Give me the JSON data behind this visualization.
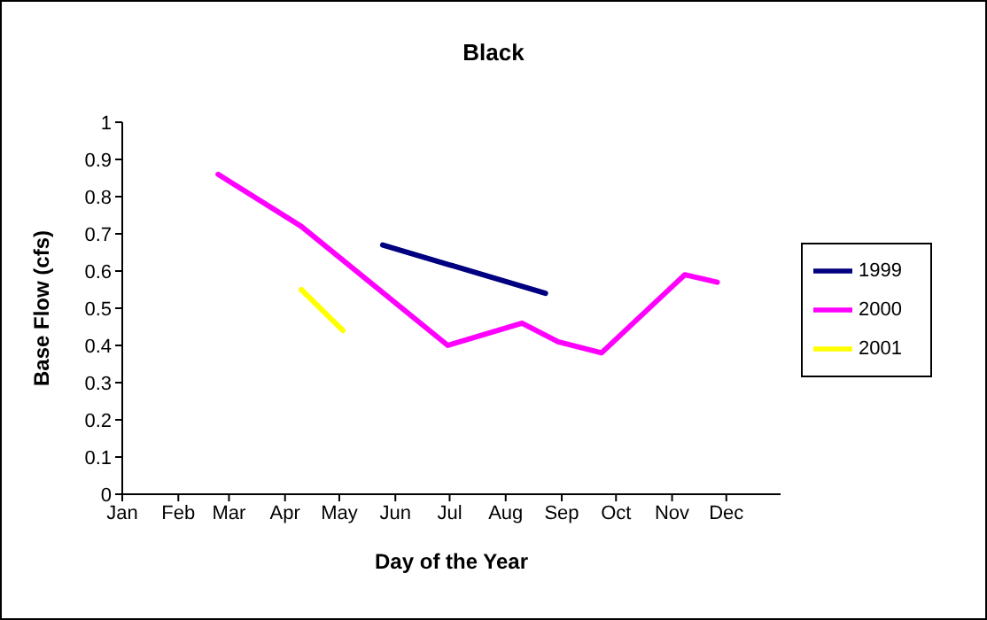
{
  "chart_data": {
    "type": "line",
    "title": "Black",
    "xlabel": "Day of the Year",
    "ylabel": "Base Flow (cfs)",
    "xlim": [
      "--01-01",
      "--12-31"
    ],
    "xticks": [
      {
        "value": "--01-01",
        "label": "Jan"
      },
      {
        "value": "--02-01",
        "label": "Feb"
      },
      {
        "value": "--03-01",
        "label": "Mar"
      },
      {
        "value": "--04-01",
        "label": "Apr"
      },
      {
        "value": "--05-01",
        "label": "May"
      },
      {
        "value": "--06-01",
        "label": "Jun"
      },
      {
        "value": "--07-01",
        "label": "Jul"
      },
      {
        "value": "--08-01",
        "label": "Aug"
      },
      {
        "value": "--09-01",
        "label": "Sep"
      },
      {
        "value": "--10-01",
        "label": "Oct"
      },
      {
        "value": "--11-01",
        "label": "Nov"
      },
      {
        "value": "--12-01",
        "label": "Dec"
      }
    ],
    "ylim": [
      0,
      1
    ],
    "yticks": [
      0,
      0.1,
      0.2,
      0.3,
      0.4,
      0.5,
      0.6,
      0.7,
      0.8,
      0.9,
      1
    ],
    "series": [
      {
        "name": "1999",
        "color": "#000080",
        "x": [
          "--05-25",
          "--08-23"
        ],
        "values": [
          0.67,
          0.54
        ]
      },
      {
        "name": "2000",
        "color": "#ff00ff",
        "x": [
          "--02-23",
          "--04-10",
          "--06-30",
          "--08-10",
          "--08-30",
          "--09-23",
          "--11-08",
          "--11-26"
        ],
        "values": [
          0.86,
          0.72,
          0.4,
          0.46,
          0.41,
          0.38,
          0.59,
          0.57
        ]
      },
      {
        "name": "2001",
        "color": "#ffff00",
        "x": [
          "--04-10",
          "--05-03"
        ],
        "values": [
          0.55,
          0.44
        ]
      }
    ],
    "grid": false,
    "legend": "right",
    "marker": "none",
    "line_style": "solid"
  }
}
